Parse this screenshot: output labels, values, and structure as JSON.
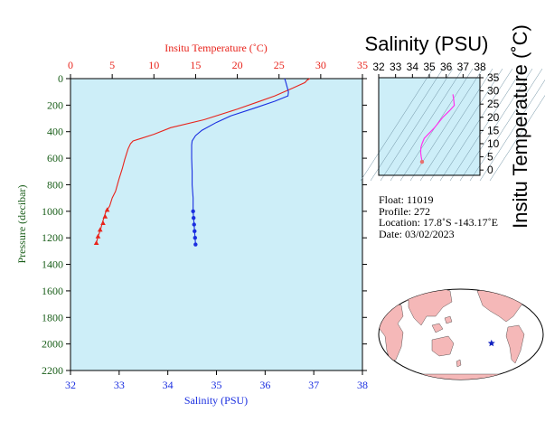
{
  "chart_data": [
    {
      "type": "line",
      "top_axis_label": "Insitu Temperature (˚C)",
      "xlabel": "Salinity (PSU)",
      "ylabel": "Pressure (decibar)",
      "xlim": [
        32,
        38
      ],
      "top_xlim": [
        0,
        35
      ],
      "ylim": [
        0,
        2200
      ],
      "y_inverted": true,
      "bottom_ticks": [
        "32",
        "33",
        "34",
        "35",
        "36",
        "37",
        "38"
      ],
      "top_ticks": [
        "0",
        "5",
        "10",
        "15",
        "20",
        "25",
        "30",
        "35"
      ],
      "y_ticks": [
        "0",
        "200",
        "400",
        "600",
        "800",
        "1000",
        "1200",
        "1400",
        "1600",
        "1800",
        "2000",
        "2200"
      ],
      "background": "#cdeef8",
      "series": [
        {
          "axis": "temperature",
          "color": "#e8241c",
          "marker": "triangle",
          "points": [
            [
              28.7,
              0
            ],
            [
              28.4,
              10
            ],
            [
              28.1,
              30
            ],
            [
              26.7,
              70
            ],
            [
              24.5,
              130
            ],
            [
              22.5,
              175
            ],
            [
              20.0,
              230
            ],
            [
              16.0,
              310
            ],
            [
              12.0,
              370
            ],
            [
              10.0,
              420
            ],
            [
              8.5,
              450
            ],
            [
              7.5,
              470
            ],
            [
              7.2,
              490
            ],
            [
              6.9,
              530
            ],
            [
              6.5,
              610
            ],
            [
              6.2,
              680
            ],
            [
              5.8,
              760
            ],
            [
              5.4,
              850
            ],
            [
              5.0,
              900
            ],
            [
              4.7,
              960
            ],
            [
              4.4,
              990
            ],
            [
              4.2,
              1010
            ],
            [
              4.0,
              1050
            ],
            [
              3.8,
              1090
            ],
            [
              3.6,
              1140
            ],
            [
              3.3,
              1190
            ],
            [
              3.1,
              1240
            ]
          ],
          "marker_points": [
            [
              4.4,
              990
            ],
            [
              4.15,
              1040
            ],
            [
              3.9,
              1090
            ],
            [
              3.55,
              1140
            ],
            [
              3.3,
              1190
            ],
            [
              3.1,
              1240
            ]
          ]
        },
        {
          "axis": "salinity",
          "color": "#1a2ee0",
          "marker": "circle",
          "points": [
            [
              36.4,
              0
            ],
            [
              36.42,
              20
            ],
            [
              36.45,
              60
            ],
            [
              36.48,
              100
            ],
            [
              36.47,
              130
            ],
            [
              36.2,
              170
            ],
            [
              35.8,
              220
            ],
            [
              35.3,
              280
            ],
            [
              35.0,
              330
            ],
            [
              34.7,
              390
            ],
            [
              34.57,
              430
            ],
            [
              34.5,
              470
            ],
            [
              34.49,
              500
            ],
            [
              34.49,
              600
            ],
            [
              34.5,
              700
            ],
            [
              34.5,
              800
            ],
            [
              34.52,
              900
            ],
            [
              34.52,
              1000
            ],
            [
              34.53,
              1050
            ],
            [
              34.54,
              1100
            ],
            [
              34.55,
              1150
            ],
            [
              34.56,
              1200
            ],
            [
              34.57,
              1250
            ]
          ],
          "marker_points": [
            [
              34.52,
              1000
            ],
            [
              34.53,
              1050
            ],
            [
              34.54,
              1100
            ],
            [
              34.55,
              1150
            ],
            [
              34.56,
              1200
            ],
            [
              34.57,
              1250
            ]
          ]
        }
      ]
    },
    {
      "type": "scatter",
      "title": "Salinity (PSU)",
      "ylabel": "Insitu Temperature (˚C)",
      "xlim": [
        32,
        38
      ],
      "ylim": [
        -2,
        35
      ],
      "x_ticks": [
        "32",
        "33",
        "34",
        "35",
        "36",
        "37",
        "38"
      ],
      "y_ticks": [
        "0",
        "5",
        "10",
        "15",
        "20",
        "25",
        "30",
        "35"
      ],
      "background": "#cdeef8",
      "line_color": "#ff33ee",
      "points": [
        [
          36.4,
          28.7
        ],
        [
          36.45,
          26.5
        ],
        [
          36.48,
          24.5
        ],
        [
          36.2,
          22.5
        ],
        [
          35.8,
          20.0
        ],
        [
          35.3,
          16.0
        ],
        [
          34.7,
          12.0
        ],
        [
          34.57,
          10.0
        ],
        [
          34.5,
          8.5
        ],
        [
          34.49,
          7.0
        ],
        [
          34.49,
          6.5
        ],
        [
          34.5,
          6.0
        ],
        [
          34.52,
          5.0
        ],
        [
          34.55,
          4.0
        ],
        [
          34.57,
          3.1
        ]
      ]
    }
  ],
  "info": {
    "float": "Float:  11019",
    "profile": "Profile:  272",
    "location": "Location:  17.8˚S  -143.17˚E",
    "date": "Date:  03/02/2023"
  },
  "map": {
    "ocean_color": "#ffffff",
    "land_color": "#f5b8b8",
    "marker_color": "#1020c0",
    "float_position": {
      "lon": -143.17,
      "lat": -17.8
    }
  },
  "colors": {
    "temperature_axis": "#e8241c",
    "salinity_axis": "#1a2ee0",
    "pressure_axis": "#1a5e1a"
  }
}
